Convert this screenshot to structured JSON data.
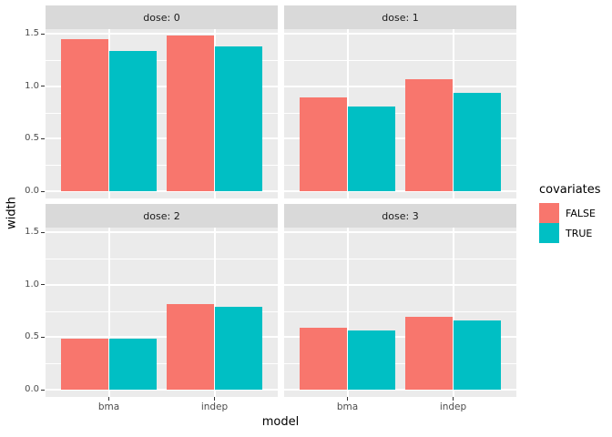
{
  "chart_data": {
    "type": "bar",
    "faceted": true,
    "facet_variable": "dose",
    "title": "",
    "xlabel": "model",
    "ylabel": "width",
    "categories": [
      "bma",
      "indep"
    ],
    "y_tick_labels": [
      "0.0",
      "0.5",
      "1.0",
      "1.5"
    ],
    "y_tick_values": [
      0,
      0.5,
      1.0,
      1.5
    ],
    "ylim": [
      -0.07,
      1.54
    ],
    "grid": {
      "major": [
        0,
        0.5,
        1.0,
        1.5
      ],
      "minor": [
        0.25,
        0.75,
        1.25
      ],
      "grid_on": true
    },
    "legend": {
      "title": "covariates",
      "position": "right",
      "entries": [
        {
          "label": "FALSE",
          "color": "#F8766D"
        },
        {
          "label": "TRUE",
          "color": "#00BFC4"
        }
      ]
    },
    "facets": [
      {
        "label": "dose: 0",
        "series": [
          {
            "name": "FALSE",
            "values": [
              1.45,
              1.48
            ]
          },
          {
            "name": "TRUE",
            "values": [
              1.34,
              1.38
            ]
          }
        ]
      },
      {
        "label": "dose: 1",
        "series": [
          {
            "name": "FALSE",
            "values": [
              0.89,
              1.07
            ]
          },
          {
            "name": "TRUE",
            "values": [
              0.81,
              0.94
            ]
          }
        ]
      },
      {
        "label": "dose: 2",
        "series": [
          {
            "name": "FALSE",
            "values": [
              0.49,
              0.82
            ]
          },
          {
            "name": "TRUE",
            "values": [
              0.49,
              0.79
            ]
          }
        ]
      },
      {
        "label": "dose: 3",
        "series": [
          {
            "name": "FALSE",
            "values": [
              0.59,
              0.69
            ]
          },
          {
            "name": "TRUE",
            "values": [
              0.56,
              0.66
            ]
          }
        ]
      }
    ],
    "colors": {
      "panel_background": "#EBEBEB",
      "strip_background": "#D9D9D9",
      "gridline": "#FFFFFF",
      "tick_text": "#4D4D4D",
      "strip_text": "#1A1A1A",
      "axis_title_text": "#000000",
      "series_false": "#F8766D",
      "series_true": "#00BFC4"
    }
  }
}
